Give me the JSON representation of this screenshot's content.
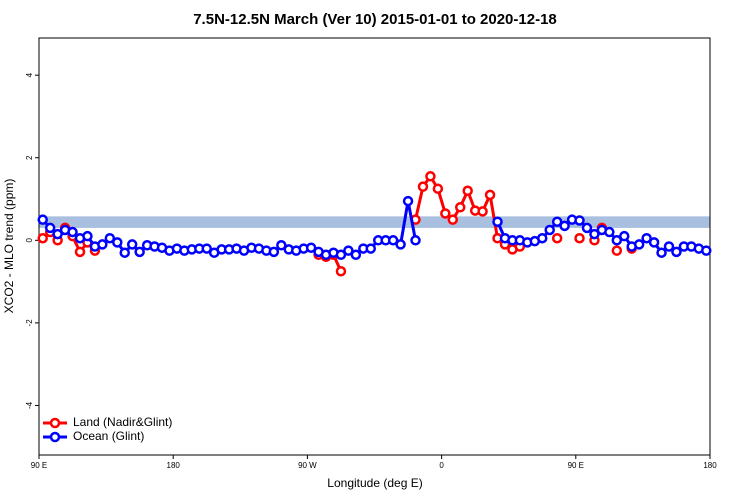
{
  "chart_data": {
    "type": "line",
    "title": "7.5N-12.5N March (Ver 10)   2015-01-01 to 2020-12-18",
    "x_label": "Longitude (deg E)",
    "y_label": "XCO2 - MLO trend (ppm)",
    "x": [
      92.5,
      97.5,
      102.5,
      107.5,
      112.5,
      117.5,
      122.5,
      127.5,
      132.5,
      137.5,
      142.5,
      147.5,
      152.5,
      157.5,
      162.5,
      167.5,
      172.5,
      177.5,
      182.5,
      187.5,
      192.5,
      197.5,
      202.5,
      207.5,
      212.5,
      217.5,
      222.5,
      227.5,
      232.5,
      237.5,
      242.5,
      247.5,
      252.5,
      257.5,
      262.5,
      267.5,
      272.5,
      277.5,
      282.5,
      287.5,
      292.5,
      297.5,
      302.5,
      307.5,
      312.5,
      317.5,
      322.5,
      327.5,
      332.5,
      337.5,
      342.5,
      347.5,
      352.5,
      357.5,
      362.5,
      367.5,
      372.5,
      377.5,
      382.5,
      387.5,
      392.5,
      397.5,
      402.5,
      407.5,
      412.5,
      417.5,
      422.5,
      427.5,
      432.5,
      437.5,
      442.5,
      447.5,
      452.5,
      457.5,
      462.5,
      467.5,
      472.5,
      477.5,
      482.5,
      487.5,
      492.5,
      497.5,
      502.5,
      507.5,
      512.5,
      517.5,
      522.5,
      527.5,
      532.5,
      537.5
    ],
    "series": [
      {
        "name": "Land (Nadir&Glint)",
        "color": "#ff0000",
        "values": [
          0.05,
          0.2,
          0.0,
          0.3,
          0.1,
          -0.28,
          -0.05,
          -0.25,
          null,
          null,
          null,
          null,
          null,
          null,
          null,
          null,
          null,
          null,
          null,
          null,
          null,
          null,
          null,
          null,
          null,
          null,
          null,
          null,
          null,
          null,
          null,
          null,
          null,
          null,
          null,
          null,
          null,
          -0.35,
          -0.4,
          -0.35,
          -0.75,
          null,
          null,
          null,
          null,
          null,
          null,
          null,
          null,
          null,
          0.5,
          1.3,
          1.55,
          1.25,
          0.65,
          0.5,
          0.8,
          1.2,
          0.72,
          0.7,
          1.1,
          0.05,
          -0.1,
          -0.22,
          -0.15,
          null,
          null,
          null,
          null,
          0.05,
          null,
          null,
          0.05,
          null,
          0.0,
          0.3,
          null,
          -0.25,
          null,
          -0.2,
          null,
          null,
          null,
          null,
          null,
          null,
          null,
          null,
          null,
          null
        ]
      },
      {
        "name": "Ocean (Glint)",
        "color": "#0000ff",
        "values": [
          0.5,
          0.3,
          0.15,
          0.25,
          0.2,
          0.05,
          0.1,
          -0.15,
          -0.1,
          0.05,
          -0.05,
          -0.3,
          -0.1,
          -0.28,
          -0.12,
          -0.15,
          -0.18,
          -0.25,
          -0.2,
          -0.25,
          -0.22,
          -0.2,
          -0.2,
          -0.3,
          -0.22,
          -0.22,
          -0.2,
          -0.25,
          -0.18,
          -0.2,
          -0.25,
          -0.28,
          -0.12,
          -0.22,
          -0.25,
          -0.2,
          -0.18,
          -0.28,
          -0.35,
          -0.3,
          -0.35,
          -0.25,
          -0.35,
          -0.2,
          -0.2,
          0.0,
          0.0,
          0.0,
          -0.1,
          0.95,
          0.0,
          null,
          null,
          null,
          null,
          null,
          null,
          null,
          null,
          null,
          null,
          0.45,
          0.05,
          0.0,
          0.0,
          -0.05,
          -0.02,
          0.05,
          0.25,
          0.45,
          0.35,
          0.5,
          0.48,
          0.3,
          0.15,
          0.25,
          0.2,
          0.0,
          0.1,
          -0.15,
          -0.1,
          0.05,
          -0.05,
          -0.3,
          -0.15,
          -0.28,
          -0.15,
          -0.15,
          -0.2,
          -0.25
        ]
      }
    ],
    "band": [
      0.3,
      0.58
    ],
    "band_color": "#a8bfe0",
    "xlim": [
      90,
      540
    ],
    "xticks": [
      {
        "value": 90,
        "label": "90 E"
      },
      180,
      {
        "value": 270,
        "label": "90 W"
      },
      {
        "value": 360,
        "label": "0"
      },
      {
        "value": 450,
        "label": "90 E"
      },
      {
        "value": 540,
        "label": "180"
      }
    ],
    "ylim": [
      -5.2,
      4.9
    ],
    "yticks": [
      -4,
      -2,
      0,
      2,
      4
    ],
    "legend": "bottom-left"
  }
}
